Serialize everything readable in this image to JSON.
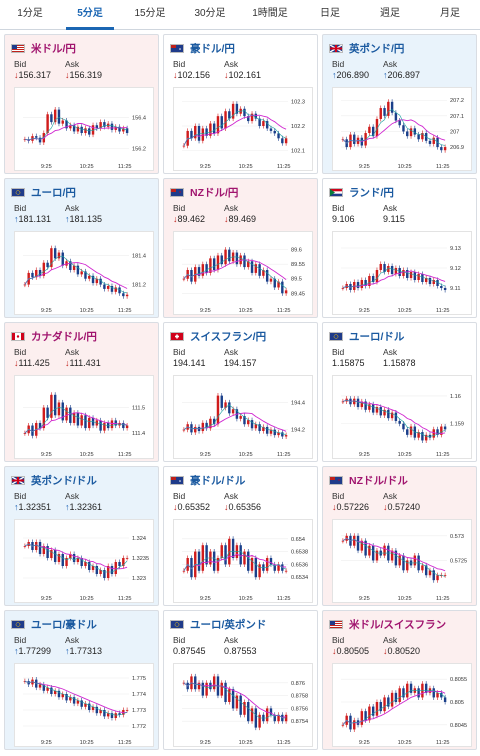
{
  "tabs": [
    "1分足",
    "5分足",
    "15分足",
    "30分足",
    "1時間足",
    "日足",
    "週足",
    "月足"
  ],
  "active_tab": 1,
  "labels": {
    "bid": "Bid",
    "ask": "Ask"
  },
  "colors": {
    "up": "#1a5fb4",
    "down": "#c0211b",
    "red_card": "#fcefef",
    "blue_card": "#e9f3fb",
    "ma_line": "#d028d0",
    "ma2_line": "#1aa0a0"
  },
  "cards": [
    {
      "title": "米ドル/円",
      "flags": [
        "us-flag",
        "jp-flag"
      ],
      "bid": "156.317",
      "ask": "156.319",
      "dir": "down",
      "theme": "red",
      "chart_data": {
        "type": "candlestick",
        "xticks": [
          "9:25",
          "10:25",
          "11:25"
        ],
        "yticks": [
          "156.4",
          "156.2"
        ],
        "ylim": [
          156.14,
          156.55
        ],
        "trend": [
          156.26,
          156.25,
          156.28,
          156.27,
          156.24,
          156.3,
          156.42,
          156.37,
          156.45,
          156.36,
          156.38,
          156.33,
          156.35,
          156.31,
          156.34,
          156.3,
          156.33,
          156.29,
          156.35,
          156.33,
          156.37,
          156.34,
          156.36,
          156.32,
          156.34,
          156.31,
          156.33,
          156.3
        ]
      }
    },
    {
      "title": "豪ドル/円",
      "flags": [
        "au-flag",
        "jp-flag"
      ],
      "bid": "102.156",
      "ask": "102.161",
      "dir": "down",
      "theme": "white",
      "chart_data": {
        "type": "candlestick",
        "xticks": [
          "9:25",
          "10:25",
          "11:25"
        ],
        "yticks": [
          "102.3",
          "102.2",
          "102.1"
        ],
        "ylim": [
          102.07,
          102.33
        ],
        "trend": [
          102.12,
          102.18,
          102.15,
          102.2,
          102.14,
          102.19,
          102.16,
          102.21,
          102.17,
          102.24,
          102.19,
          102.26,
          102.23,
          102.29,
          102.25,
          102.27,
          102.24,
          102.22,
          102.25,
          102.23,
          102.2,
          102.22,
          102.19,
          102.18,
          102.17,
          102.15,
          102.13,
          102.15
        ]
      }
    },
    {
      "title": "英ポンド/円",
      "flags": [
        "uk-flag",
        "jp-flag"
      ],
      "bid": "206.890",
      "ask": "206.897",
      "dir": "up",
      "theme": "blue",
      "chart_data": {
        "type": "candlestick",
        "xticks": [
          "9:25",
          "10:25",
          "11:25"
        ],
        "yticks": [
          "207.2",
          "207.1",
          "207",
          "206.9"
        ],
        "ylim": [
          206.83,
          207.24
        ],
        "trend": [
          206.95,
          206.9,
          206.98,
          206.92,
          206.96,
          206.91,
          206.99,
          207.03,
          206.97,
          207.08,
          207.15,
          207.1,
          207.19,
          207.12,
          207.07,
          207.04,
          207.0,
          206.97,
          207.02,
          206.98,
          206.95,
          206.99,
          206.94,
          206.92,
          206.96,
          206.9,
          206.88,
          206.9
        ]
      }
    },
    {
      "title": "ユーロ/円",
      "flags": [
        "eu-flag",
        "jp-flag"
      ],
      "bid": "181.131",
      "ask": "181.135",
      "dir": "up",
      "theme": "blue",
      "chart_data": {
        "type": "candlestick",
        "xticks": [
          "9:25",
          "10:25",
          "11:25"
        ],
        "yticks": [
          "181.4",
          "181.2"
        ],
        "ylim": [
          181.08,
          181.52
        ],
        "trend": [
          181.2,
          181.28,
          181.25,
          181.3,
          181.26,
          181.35,
          181.32,
          181.45,
          181.38,
          181.42,
          181.33,
          181.36,
          181.3,
          181.33,
          181.27,
          181.29,
          181.24,
          181.26,
          181.21,
          181.24,
          181.2,
          181.17,
          181.19,
          181.15,
          181.18,
          181.14,
          181.12,
          181.13
        ]
      }
    },
    {
      "title": "NZドル/円",
      "flags": [
        "nz-flag",
        "jp-flag"
      ],
      "bid": "89.462",
      "ask": "89.469",
      "dir": "down",
      "theme": "red",
      "chart_data": {
        "type": "candlestick",
        "xticks": [
          "9:25",
          "10:25",
          "11:25"
        ],
        "yticks": [
          "89.6",
          "89.55",
          "89.5",
          "89.45"
        ],
        "ylim": [
          89.42,
          89.64
        ],
        "trend": [
          89.5,
          89.53,
          89.49,
          89.54,
          89.51,
          89.55,
          89.52,
          89.57,
          89.53,
          89.58,
          89.55,
          89.6,
          89.56,
          89.59,
          89.55,
          89.58,
          89.54,
          89.56,
          89.52,
          89.55,
          89.51,
          89.53,
          89.49,
          89.5,
          89.47,
          89.49,
          89.45,
          89.46
        ]
      }
    },
    {
      "title": "ランド/円",
      "flags": [
        "za-flag",
        "jp-flag"
      ],
      "bid": "9.106",
      "ask": "9.115",
      "dir": "none",
      "theme": "white",
      "chart_data": {
        "type": "candlestick",
        "xticks": [
          "9:25",
          "10:25",
          "11:25"
        ],
        "yticks": [
          "9.13",
          "9.12",
          "9.11"
        ],
        "ylim": [
          9.103,
          9.135
        ],
        "trend": [
          9.11,
          9.112,
          9.109,
          9.113,
          9.11,
          9.114,
          9.111,
          9.116,
          9.113,
          9.119,
          9.122,
          9.118,
          9.121,
          9.117,
          9.12,
          9.116,
          9.119,
          9.115,
          9.118,
          9.114,
          9.117,
          9.113,
          9.115,
          9.112,
          9.114,
          9.111,
          9.11,
          9.109
        ]
      }
    },
    {
      "title": "カナダドル/円",
      "flags": [
        "ca-flag",
        "jp-flag"
      ],
      "bid": "111.425",
      "ask": "111.431",
      "dir": "down",
      "theme": "red",
      "chart_data": {
        "type": "candlestick",
        "xticks": [
          "9:25",
          "10:25",
          "11:25"
        ],
        "yticks": [
          "111.5",
          "111.4"
        ],
        "ylim": [
          111.35,
          111.6
        ],
        "trend": [
          111.4,
          111.43,
          111.39,
          111.44,
          111.42,
          111.5,
          111.46,
          111.55,
          111.47,
          111.52,
          111.45,
          111.5,
          111.44,
          111.48,
          111.43,
          111.47,
          111.42,
          111.46,
          111.43,
          111.45,
          111.41,
          111.44,
          111.42,
          111.45,
          111.43,
          111.44,
          111.42,
          111.43
        ]
      }
    },
    {
      "title": "スイスフラン/円",
      "flags": [
        "ch-flag",
        "jp-flag"
      ],
      "bid": "194.141",
      "ask": "194.157",
      "dir": "none",
      "theme": "white",
      "chart_data": {
        "type": "candlestick",
        "xticks": [
          "9:25",
          "10:25",
          "11:25"
        ],
        "yticks": [
          "194.4",
          "194.2"
        ],
        "ylim": [
          194.08,
          194.55
        ],
        "trend": [
          194.2,
          194.24,
          194.18,
          194.22,
          194.19,
          194.25,
          194.21,
          194.28,
          194.24,
          194.45,
          194.36,
          194.4,
          194.32,
          194.35,
          194.28,
          194.3,
          194.24,
          194.27,
          194.21,
          194.24,
          194.19,
          194.22,
          194.17,
          194.2,
          194.16,
          194.18,
          194.15,
          194.16
        ]
      }
    },
    {
      "title": "ユーロ/ドル",
      "flags": [
        "eu-flag",
        "us-flag"
      ],
      "bid": "1.15875",
      "ask": "1.15878",
      "dir": "none",
      "theme": "white",
      "chart_data": {
        "type": "candlestick",
        "xticks": [
          "9:25",
          "10:25",
          "11:25"
        ],
        "yticks": [
          "1.16",
          "1.159"
        ],
        "ylim": [
          1.1582,
          1.1605
        ],
        "trend": [
          1.1598,
          1.1599,
          1.1597,
          1.1599,
          1.1596,
          1.1598,
          1.1595,
          1.1597,
          1.1594,
          1.1596,
          1.1593,
          1.1595,
          1.1592,
          1.1594,
          1.1591,
          1.159,
          1.1588,
          1.1586,
          1.1589,
          1.1585,
          1.1587,
          1.1584,
          1.1586,
          1.1585,
          1.1588,
          1.1586,
          1.1589,
          1.1588
        ]
      }
    },
    {
      "title": "英ポンド/ドル",
      "flags": [
        "uk-flag",
        "us-flag"
      ],
      "bid": "1.32351",
      "ask": "1.32361",
      "dir": "up",
      "theme": "blue",
      "chart_data": {
        "type": "candlestick",
        "xticks": [
          "9:25",
          "10:25",
          "11:25"
        ],
        "yticks": [
          "1.324",
          "1.3235",
          "1.323"
        ],
        "ylim": [
          1.3227,
          1.3243
        ],
        "trend": [
          1.3238,
          1.3239,
          1.3237,
          1.3239,
          1.3236,
          1.3238,
          1.3235,
          1.3237,
          1.3234,
          1.3236,
          1.3233,
          1.3235,
          1.3236,
          1.3234,
          1.3235,
          1.3233,
          1.3234,
          1.3232,
          1.3233,
          1.3231,
          1.3232,
          1.323,
          1.3233,
          1.3231,
          1.3234,
          1.3233,
          1.3235,
          1.3235
        ]
      }
    },
    {
      "title": "豪ドル/ドル",
      "flags": [
        "au-flag",
        "us-flag"
      ],
      "bid": "0.65352",
      "ask": "0.65356",
      "dir": "down",
      "theme": "white",
      "chart_data": {
        "type": "candlestick",
        "xticks": [
          "9:25",
          "10:25",
          "11:25"
        ],
        "yticks": [
          "0.654",
          "0.6538",
          "0.6536",
          "0.6534"
        ],
        "ylim": [
          0.6532,
          0.6542
        ],
        "trend": [
          0.6535,
          0.6537,
          0.6534,
          0.6538,
          0.6535,
          0.6539,
          0.6536,
          0.6538,
          0.6535,
          0.6537,
          0.6539,
          0.6536,
          0.654,
          0.6537,
          0.6539,
          0.6536,
          0.6538,
          0.6535,
          0.6537,
          0.6534,
          0.6536,
          0.6535,
          0.6537,
          0.6536,
          0.6535,
          0.6536,
          0.6535,
          0.6535
        ]
      }
    },
    {
      "title": "NZドル/ドル",
      "flags": [
        "nz-flag",
        "us-flag"
      ],
      "bid": "0.57226",
      "ask": "0.57240",
      "dir": "down",
      "theme": "red",
      "chart_data": {
        "type": "candlestick",
        "xticks": [
          "9:25",
          "10:25",
          "11:25"
        ],
        "yticks": [
          "0.573",
          "0.5725"
        ],
        "ylim": [
          0.5719,
          0.5732
        ],
        "trend": [
          0.5729,
          0.573,
          0.5728,
          0.573,
          0.5727,
          0.5729,
          0.5726,
          0.5728,
          0.5725,
          0.5727,
          0.5726,
          0.5728,
          0.5725,
          0.5727,
          0.5724,
          0.5726,
          0.5723,
          0.5725,
          0.5724,
          0.5726,
          0.5723,
          0.5724,
          0.5722,
          0.5723,
          0.5721,
          0.5722,
          0.5722,
          0.5722
        ]
      }
    },
    {
      "title": "ユーロ/豪ドル",
      "flags": [
        "eu-flag",
        "au-flag"
      ],
      "bid": "1.77299",
      "ask": "1.77313",
      "dir": "up",
      "theme": "blue",
      "chart_data": {
        "type": "candlestick",
        "xticks": [
          "9:25",
          "10:25",
          "11:25"
        ],
        "yticks": [
          "1.775",
          "1.774",
          "1.773",
          "1.772"
        ],
        "ylim": [
          1.7715,
          1.7755
        ],
        "trend": [
          1.7748,
          1.7746,
          1.7749,
          1.7744,
          1.7746,
          1.7742,
          1.7744,
          1.774,
          1.7742,
          1.7738,
          1.774,
          1.7736,
          1.7738,
          1.7734,
          1.7736,
          1.7732,
          1.7734,
          1.773,
          1.7732,
          1.7728,
          1.773,
          1.7726,
          1.7728,
          1.7725,
          1.7728,
          1.7727,
          1.773,
          1.773
        ]
      }
    },
    {
      "title": "ユーロ/英ポンド",
      "flags": [
        "eu-flag",
        "uk-flag"
      ],
      "bid": "0.87545",
      "ask": "0.87553",
      "dir": "none",
      "theme": "white",
      "chart_data": {
        "type": "candlestick",
        "xticks": [
          "9:25",
          "10:25",
          "11:25"
        ],
        "yticks": [
          "0.876",
          "0.8758",
          "0.8756",
          "0.8754"
        ],
        "ylim": [
          0.8752,
          0.8762
        ],
        "trend": [
          0.876,
          0.8759,
          0.8761,
          0.8759,
          0.876,
          0.8758,
          0.876,
          0.8759,
          0.8761,
          0.8758,
          0.876,
          0.8757,
          0.8759,
          0.8756,
          0.8758,
          0.8755,
          0.8757,
          0.8754,
          0.8756,
          0.8753,
          0.8755,
          0.8754,
          0.8756,
          0.8755,
          0.8754,
          0.8755,
          0.8754,
          0.8755
        ]
      }
    },
    {
      "title": "米ドル/スイスフラン",
      "flags": [
        "us-flag",
        "ch-flag"
      ],
      "bid": "0.80505",
      "ask": "0.80520",
      "dir": "down",
      "theme": "red",
      "chart_data": {
        "type": "candlestick",
        "xticks": [
          "9:25",
          "10:25",
          "11:25"
        ],
        "yticks": [
          "0.8055",
          "0.805",
          "0.8045"
        ],
        "ylim": [
          0.8043,
          0.8057
        ],
        "trend": [
          0.8045,
          0.8047,
          0.8044,
          0.8046,
          0.8045,
          0.8048,
          0.8046,
          0.8049,
          0.8047,
          0.805,
          0.8048,
          0.8051,
          0.8049,
          0.8052,
          0.805,
          0.8053,
          0.8051,
          0.8054,
          0.8052,
          0.8053,
          0.8051,
          0.8054,
          0.8052,
          0.8053,
          0.8051,
          0.8052,
          0.8051,
          0.805
        ]
      }
    }
  ]
}
